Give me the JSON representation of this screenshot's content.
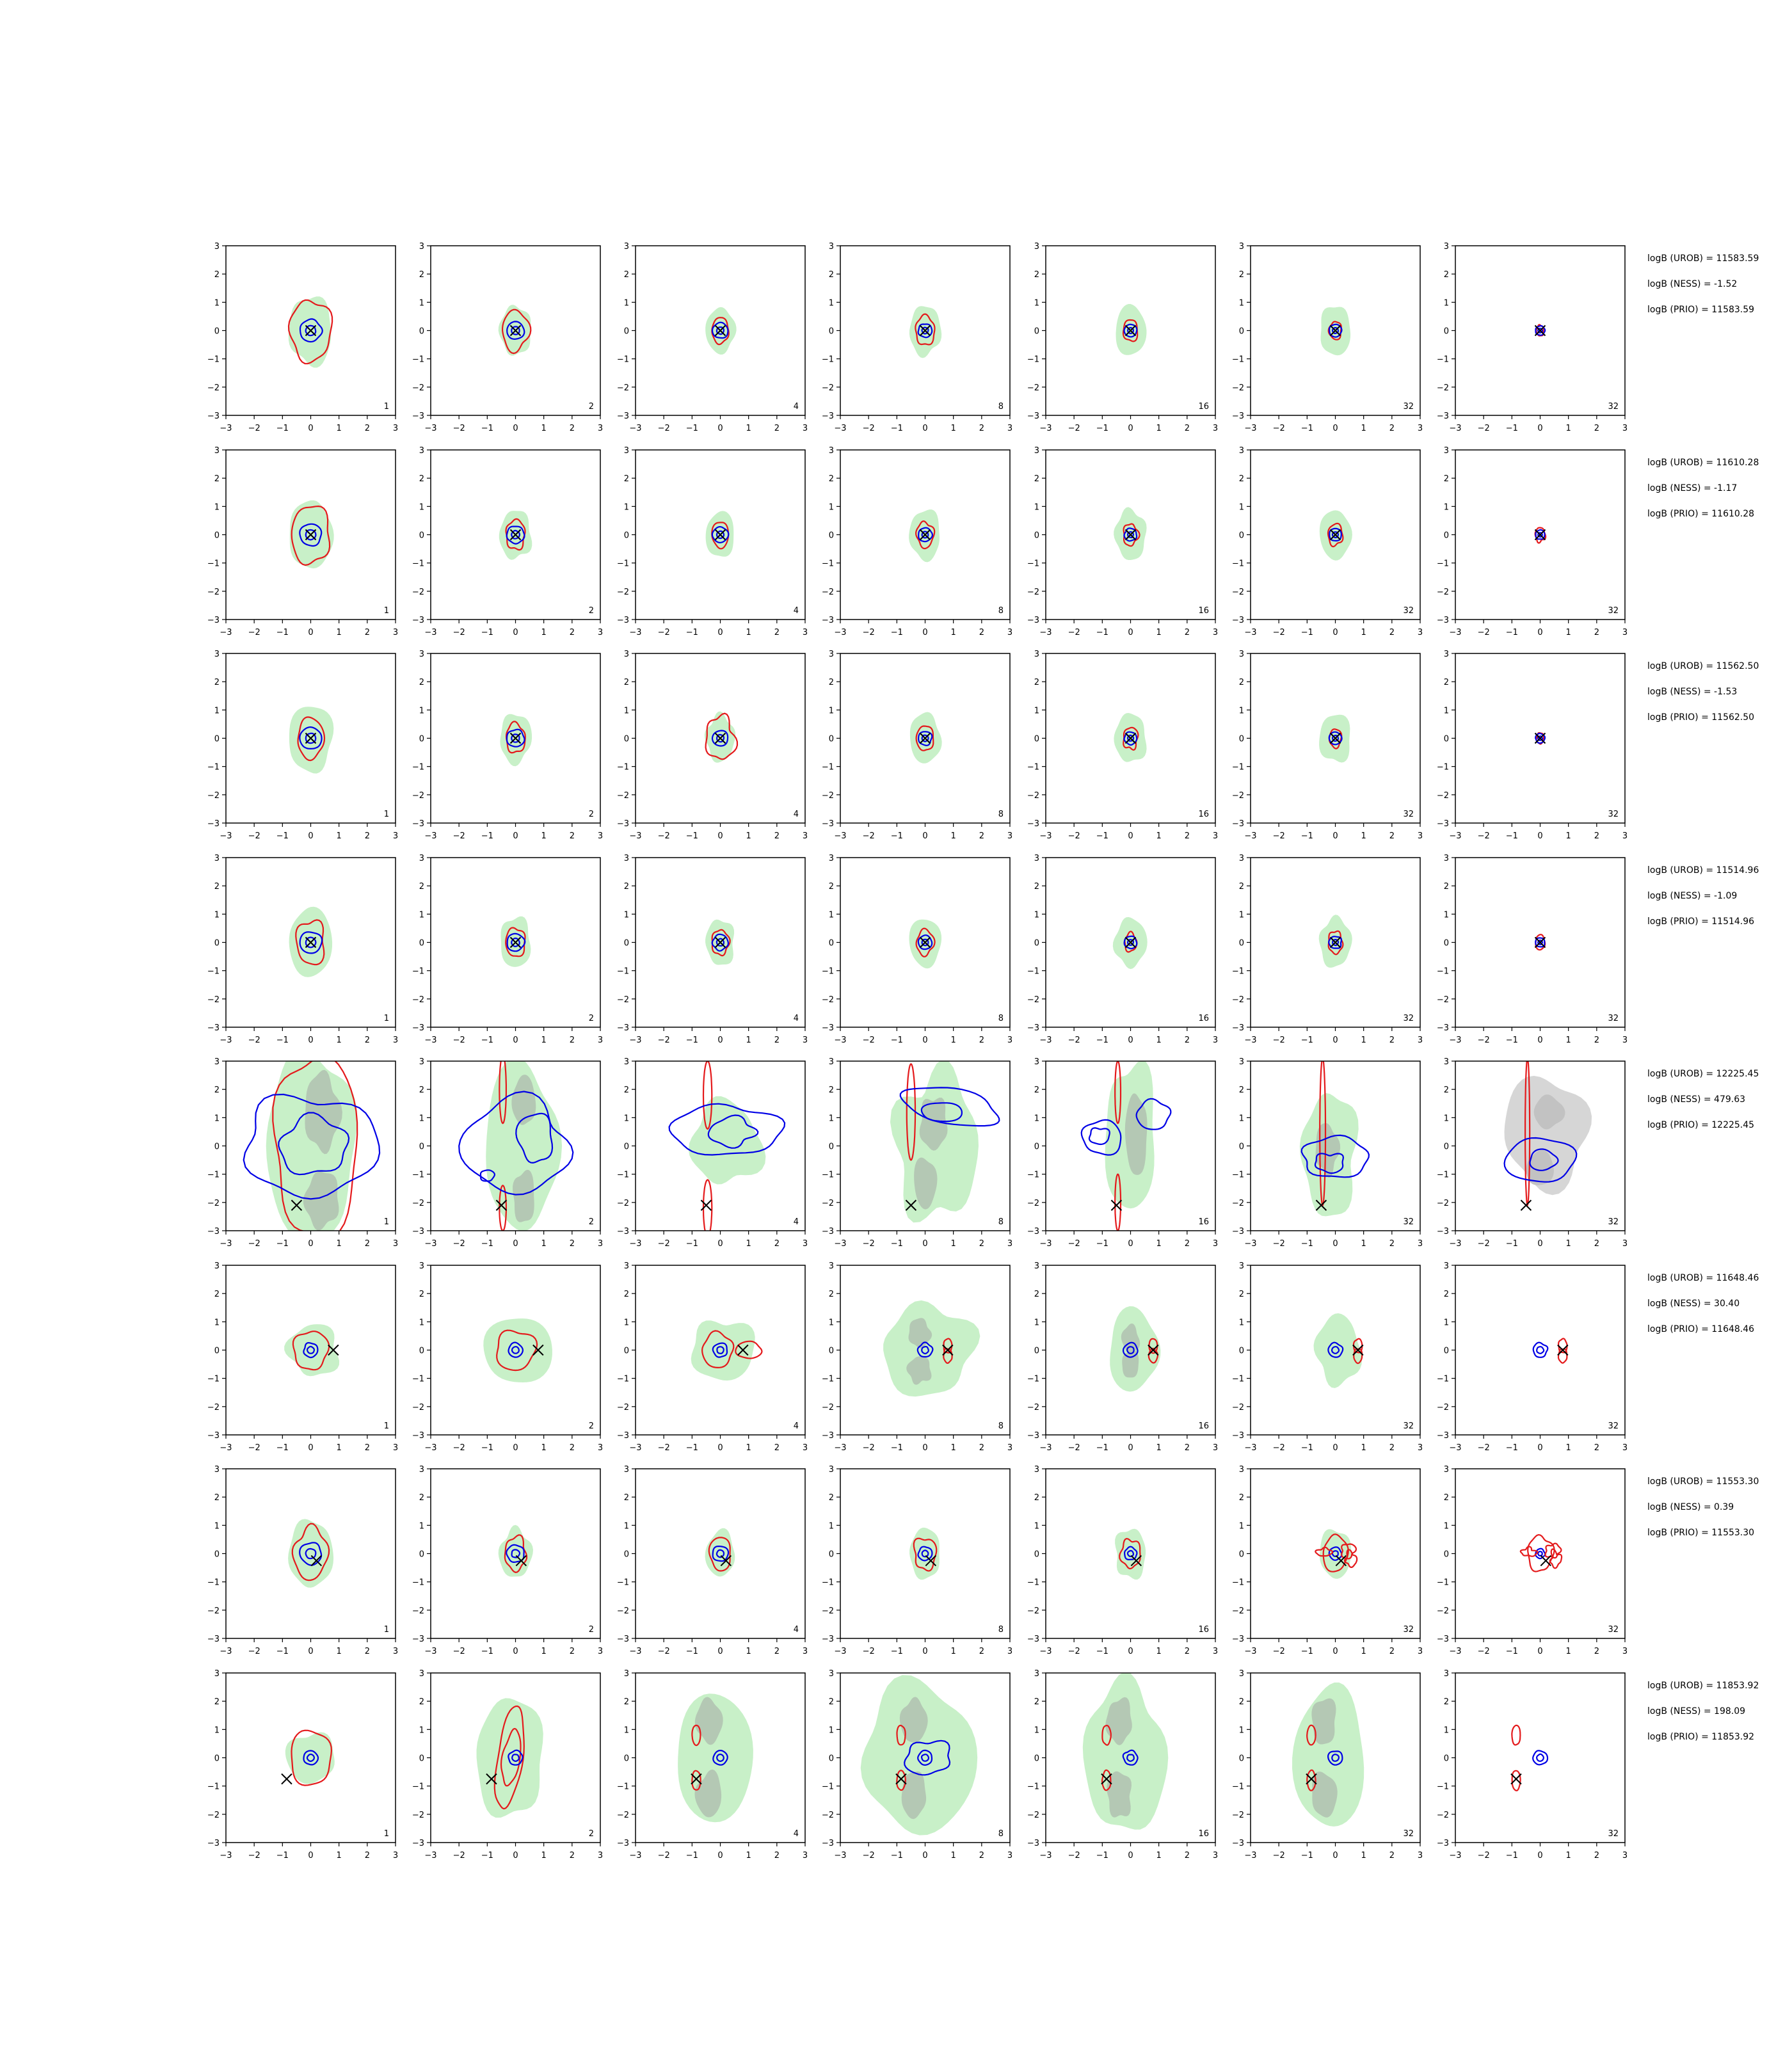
{
  "colors": {
    "background": "#ffffff",
    "axis": "#000000",
    "fill_light": "#c8f0c8",
    "fill_dark": "#b4c8b4",
    "fill_grey": "#d6d6d6",
    "fill_grey_dark": "#c2c2c2",
    "contour_red": "#e41a1c",
    "contour_blue": "#0000e6",
    "marker": "#000000"
  },
  "chart_data": {
    "type": "contour-grid",
    "xlim": [
      -3,
      3
    ],
    "ylim": [
      -3,
      3
    ],
    "xticks": [
      "−3",
      "−2",
      "−1",
      "0",
      "1",
      "2",
      "3"
    ],
    "yticks": [
      "3",
      "2",
      "1",
      "0",
      "−1",
      "−2",
      "−3"
    ],
    "grid": false,
    "column_corner_labels": [
      "1",
      "2",
      "4",
      "8",
      "16",
      "32",
      "32"
    ],
    "rows": [
      {
        "annotations": [
          "logB (UROB) = 11583.59",
          "logB (NESS) = -1.52",
          "logB (PRIO) = 11583.59"
        ],
        "marker": [
          0,
          0
        ]
      },
      {
        "annotations": [
          "logB (UROB) = 11610.28",
          "logB (NESS) = -1.17",
          "logB (PRIO) = 11610.28"
        ],
        "marker": [
          0,
          0
        ]
      },
      {
        "annotations": [
          "logB (UROB) = 11562.50",
          "logB (NESS) = -1.53",
          "logB (PRIO) = 11562.50"
        ],
        "marker": [
          0,
          0
        ]
      },
      {
        "annotations": [
          "logB (UROB) = 11514.96",
          "logB (NESS) = -1.09",
          "logB (PRIO) = 11514.96"
        ],
        "marker": [
          0,
          0
        ]
      },
      {
        "annotations": [
          "logB (UROB) = 12225.45",
          "logB (NESS) = 479.63",
          "logB (PRIO) = 12225.45"
        ],
        "marker": [
          -0.5,
          -2.1
        ]
      },
      {
        "annotations": [
          "logB (UROB) = 11648.46",
          "logB (NESS) = 30.40",
          "logB (PRIO) = 11648.46"
        ],
        "marker": [
          0.8,
          0
        ]
      },
      {
        "annotations": [
          "logB (UROB) = 11553.30",
          "logB (NESS) = 0.39",
          "logB (PRIO) = 11553.30"
        ],
        "marker": [
          0.2,
          -0.25
        ]
      },
      {
        "annotations": [
          "logB (UROB) = 11853.92",
          "logB (NESS) = 198.09",
          "logB (PRIO) = 11853.92"
        ],
        "marker": [
          -0.85,
          -0.75
        ]
      }
    ]
  }
}
